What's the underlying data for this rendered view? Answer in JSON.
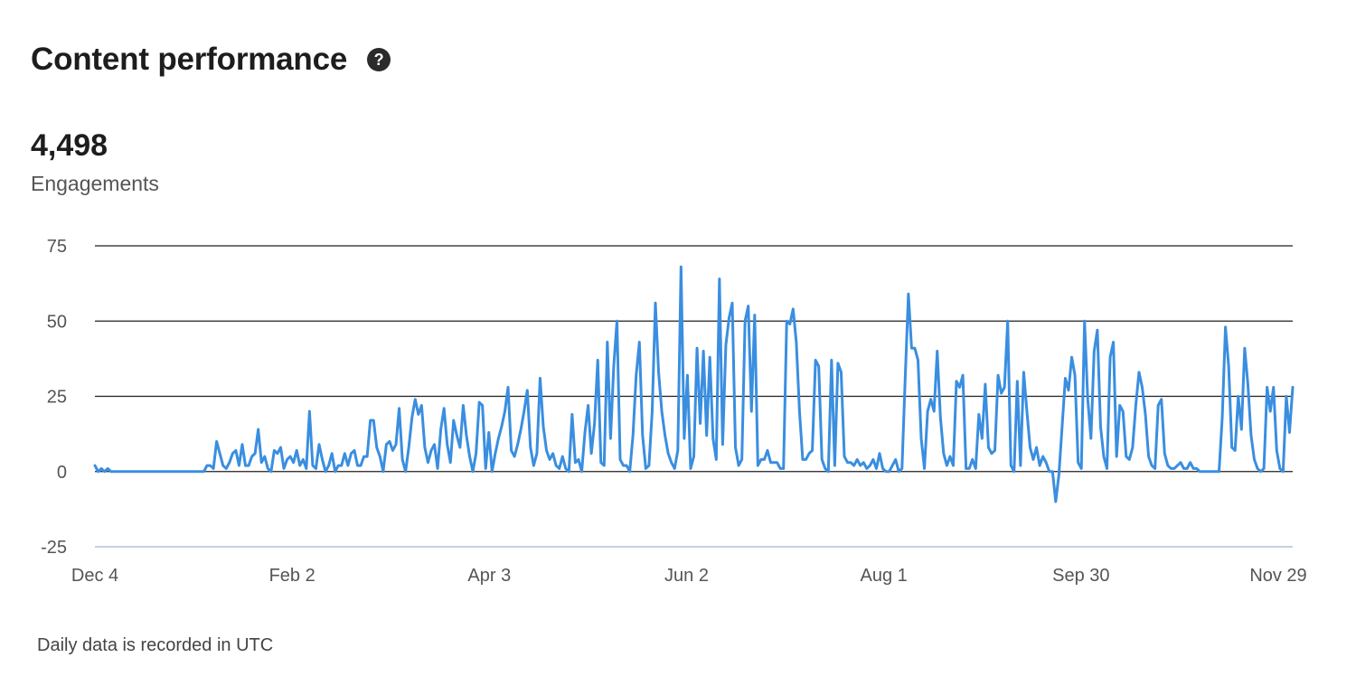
{
  "header": {
    "title": "Content performance",
    "help_icon": "question-circle-icon",
    "help_glyph": "?"
  },
  "metric": {
    "value": "4,498",
    "label": "Engagements"
  },
  "footnote": "Daily data is recorded in UTC",
  "colors": {
    "line": "#3a8ee0",
    "grid": "#1f1f1f",
    "bottom_axis": "#c5d1e4"
  },
  "chart_data": {
    "type": "line",
    "x_ticks": [
      "Dec 4",
      "Feb 2",
      "Apr 3",
      "Jun 2",
      "Aug 1",
      "Sep 30",
      "Nov 29"
    ],
    "y_ticks": [
      75,
      50,
      25,
      0,
      -25
    ],
    "ylim": [
      -25,
      75
    ],
    "grid": true,
    "series": [
      {
        "values": [
          2,
          0,
          1,
          0,
          1,
          0,
          0,
          0,
          0,
          0,
          0,
          0,
          0,
          0,
          0,
          0,
          0,
          0,
          0,
          0,
          0,
          0,
          0,
          0,
          0,
          0,
          0,
          0,
          0,
          0,
          0,
          0,
          0,
          0,
          0,
          2,
          2,
          1,
          10,
          6,
          2,
          1,
          3,
          6,
          7,
          2,
          9,
          2,
          2,
          5,
          6,
          14,
          3,
          5,
          1,
          0,
          7,
          6,
          8,
          1,
          4,
          5,
          3,
          7,
          2,
          4,
          1,
          20,
          2,
          1,
          9,
          4,
          0,
          2,
          6,
          0,
          2,
          2,
          6,
          2,
          6,
          7,
          2,
          2,
          5,
          5,
          17,
          17,
          8,
          5,
          0,
          9,
          10,
          7,
          9,
          21,
          4,
          0,
          8,
          18,
          24,
          19,
          22,
          8,
          3,
          7,
          9,
          1,
          14,
          21,
          9,
          3,
          17,
          12,
          8,
          22,
          12,
          5,
          0,
          6,
          23,
          22,
          1,
          13,
          0,
          6,
          11,
          15,
          20,
          28,
          7,
          5,
          9,
          14,
          20,
          27,
          8,
          2,
          6,
          31,
          15,
          7,
          4,
          6,
          2,
          1,
          5,
          1,
          0,
          19,
          3,
          4,
          0,
          13,
          22,
          6,
          16,
          37,
          3,
          2,
          43,
          11,
          35,
          50,
          4,
          2,
          2,
          0,
          12,
          32,
          43,
          12,
          1,
          2,
          20,
          56,
          33,
          20,
          12,
          6,
          3,
          1,
          7,
          68,
          11,
          32,
          1,
          5,
          41,
          16,
          40,
          12,
          38,
          11,
          4,
          64,
          9,
          42,
          51,
          56,
          8,
          2,
          4,
          50,
          55,
          20,
          52,
          2,
          4,
          4,
          7,
          3,
          3,
          3,
          1,
          1,
          50,
          49,
          54,
          43,
          20,
          4,
          4,
          6,
          7,
          37,
          35,
          4,
          1,
          0,
          37,
          2,
          36,
          33,
          5,
          3,
          3,
          2,
          4,
          2,
          3,
          1,
          2,
          4,
          1,
          6,
          1,
          0,
          0,
          2,
          4,
          0,
          1,
          31,
          59,
          41,
          41,
          37,
          11,
          1,
          20,
          24,
          20,
          40,
          18,
          6,
          2,
          5,
          2,
          30,
          28,
          32,
          1,
          1,
          4,
          1,
          19,
          11,
          29,
          8,
          6,
          7,
          32,
          26,
          28,
          50,
          2,
          0,
          30,
          2,
          33,
          20,
          8,
          4,
          8,
          2,
          5,
          3,
          0,
          0,
          -10,
          -1,
          15,
          31,
          27,
          38,
          32,
          3,
          1,
          50,
          24,
          11,
          40,
          47,
          15,
          5,
          1,
          38,
          43,
          5,
          22,
          20,
          5,
          4,
          8,
          22,
          33,
          28,
          19,
          5,
          2,
          1,
          22,
          24,
          6,
          2,
          1,
          1,
          2,
          3,
          1,
          1,
          3,
          1,
          1,
          0,
          0,
          0,
          0,
          0,
          0,
          0,
          18,
          48,
          35,
          8,
          7,
          25,
          14,
          41,
          29,
          12,
          4,
          1,
          0,
          1,
          28,
          20,
          28,
          7,
          1,
          0,
          25,
          13,
          28
        ]
      }
    ]
  }
}
